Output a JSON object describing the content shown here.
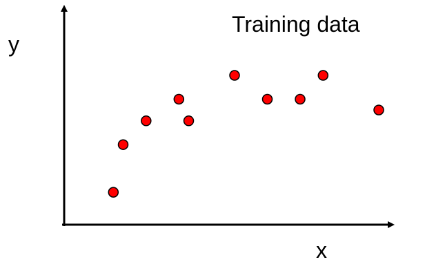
{
  "chart_data": {
    "type": "scatter",
    "title": "Training data",
    "xlabel": "x",
    "ylabel": "y",
    "grid": false,
    "legend": "none",
    "xlim": [
      0,
      1
    ],
    "ylim": [
      0,
      1
    ],
    "x_ticks_shown": false,
    "y_ticks_shown": false,
    "series": [
      {
        "x": [
          0.15,
          0.18,
          0.25,
          0.35,
          0.38,
          0.52,
          0.62,
          0.72,
          0.79,
          0.96
        ],
        "y": [
          0.15,
          0.37,
          0.48,
          0.58,
          0.48,
          0.69,
          0.58,
          0.58,
          0.69,
          0.53
        ],
        "color": "#ff0000",
        "edge_color": "#000000",
        "marker": "circle"
      }
    ]
  }
}
